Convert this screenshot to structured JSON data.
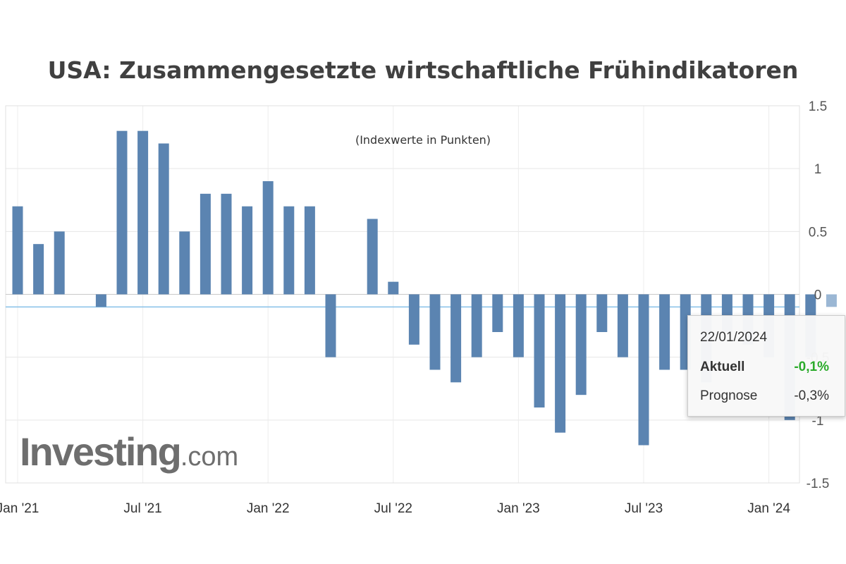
{
  "title": "USA: Zusammengesetzte wirtschaftliche Frühindikatoren",
  "subtitle": "(Indexwerte in Punkten)",
  "logo": {
    "word": "Investing",
    "domain": ".com"
  },
  "tooltip": {
    "date": "22/01/2024",
    "actual_label": "Aktuell",
    "actual_value": "-0,1%",
    "forecast_label": "Prognose",
    "forecast_value": "-0,3%"
  },
  "chart_data": {
    "type": "bar",
    "series": [
      {
        "values": [
          0.7,
          0.4,
          0.5,
          null,
          -0.1,
          1.3,
          1.3,
          1.2,
          0.5,
          0.8,
          0.8,
          0.7,
          0.9,
          0.7,
          0.7,
          -0.5,
          null,
          0.6,
          0.1,
          -0.4,
          -0.6,
          -0.7,
          -0.5,
          -0.3,
          -0.5,
          -0.9,
          -1.1,
          -0.8,
          -0.3,
          -0.5,
          -1.2,
          -0.6,
          -0.6,
          -0.7,
          -0.3,
          -0.4,
          -0.5,
          -1.0,
          -0.5,
          -0.1
        ]
      }
    ],
    "x_tick_labels": [
      "Jan '21",
      "Jul '21",
      "Jan '22",
      "Jul '22",
      "Jan '23",
      "Jul '23",
      "Jan '24"
    ],
    "y_tick_labels": [
      "1.5",
      "1",
      "0.5",
      "0",
      "-0.5",
      "-1",
      "-1.5"
    ],
    "ylim": [
      -1.5,
      1.5
    ],
    "reference_line": -0.1,
    "bar_color": "#5b84b1",
    "highlight_bar_color": "#9bb7d4",
    "reference_line_color": "#86c0e8",
    "grid": true
  }
}
